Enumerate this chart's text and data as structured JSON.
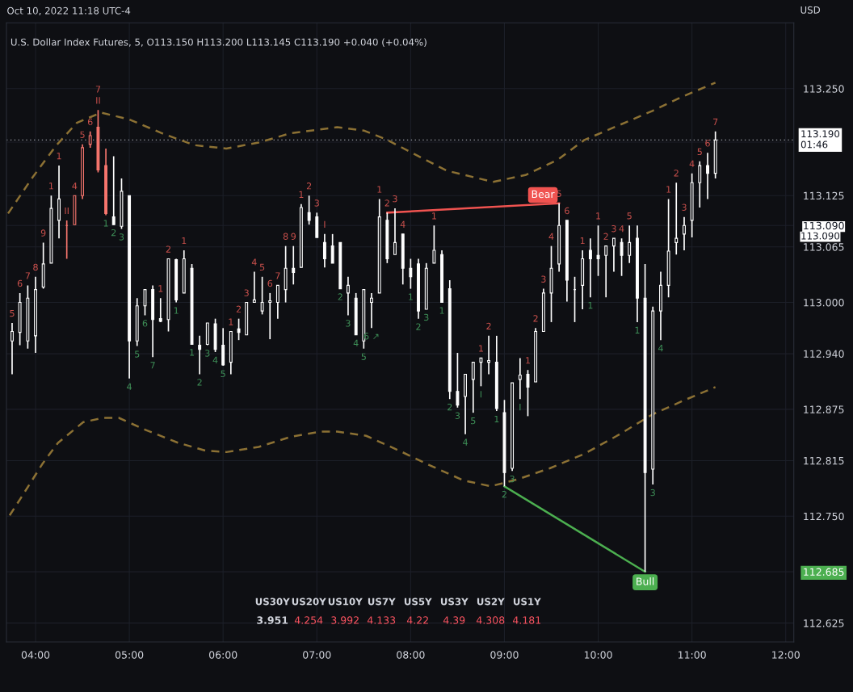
{
  "chart_data": [
    {
      "type": "candlestick",
      "title": "U.S. Dollar Index Futures, 5, O113.150 H113.200 L113.145 C113.190 +0.040 (+0.04%)",
      "subtitle": "Oct 10, 2022 11:18 UTC-4",
      "ylabel": "USD",
      "x": [
        3.75,
        3.833,
        3.917,
        4,
        4.083,
        4.167,
        4.25,
        4.333,
        4.417,
        4.5,
        4.583,
        4.667,
        4.75,
        4.833,
        4.917,
        5,
        5.083,
        5.167,
        5.25,
        5.333,
        5.417,
        5.5,
        5.583,
        5.667,
        5.75,
        5.833,
        5.917,
        6,
        6.083,
        6.167,
        6.25,
        6.333,
        6.417,
        6.5,
        6.583,
        6.667,
        6.75,
        6.833,
        6.917,
        7,
        7.083,
        7.167,
        7.25,
        7.333,
        7.417,
        7.5,
        7.583,
        7.667,
        7.75,
        7.833,
        7.917,
        8,
        8.083,
        8.167,
        8.25,
        8.333,
        8.417,
        8.5,
        8.583,
        8.667,
        8.75,
        8.833,
        8.917,
        9,
        9.083,
        9.167,
        9.25,
        9.333,
        9.417,
        9.5,
        9.583,
        9.667,
        9.75,
        9.833,
        9.917,
        10,
        10.083,
        10.167,
        10.25,
        10.333,
        10.417,
        10.5,
        10.583,
        10.667,
        10.75,
        10.833,
        10.917,
        11,
        11.083,
        11.167,
        11.25
      ],
      "ohlc": [
        [
          112.955,
          112.976,
          112.916,
          112.966
        ],
        [
          112.965,
          113.011,
          112.95,
          113.0
        ],
        [
          112.955,
          113.02,
          112.946,
          113.005
        ],
        [
          112.961,
          113.03,
          112.941,
          113.015
        ],
        [
          113.018,
          113.07,
          113.016,
          113.045
        ],
        [
          113.046,
          113.125,
          113.046,
          113.11
        ],
        [
          113.096,
          113.16,
          113.075,
          113.121
        ],
        [
          113.09,
          113.096,
          113.051,
          113.09
        ],
        [
          113.091,
          113.125,
          113.091,
          113.125
        ],
        [
          113.125,
          113.185,
          113.121,
          113.181
        ],
        [
          113.185,
          113.2,
          113.181,
          113.195
        ],
        [
          113.205,
          113.225,
          113.152,
          113.155
        ],
        [
          113.16,
          113.18,
          113.102,
          113.104
        ],
        [
          113.1,
          113.171,
          113.091,
          113.091
        ],
        [
          113.089,
          113.145,
          113.086,
          113.13
        ],
        [
          113.125,
          113.125,
          112.911,
          112.955
        ],
        [
          112.955,
          113.005,
          112.949,
          112.996
        ],
        [
          112.996,
          113.015,
          112.985,
          113.015
        ],
        [
          113.015,
          113.02,
          112.936,
          112.98
        ],
        [
          112.981,
          113.005,
          112.977,
          112.978
        ],
        [
          112.98,
          113.051,
          112.966,
          113.051
        ],
        [
          113.05,
          113.051,
          113.0,
          113.003
        ],
        [
          113.011,
          113.061,
          113.011,
          113.051
        ],
        [
          113.04,
          113.045,
          112.951,
          112.951
        ],
        [
          112.95,
          112.961,
          112.916,
          112.945
        ],
        [
          112.951,
          112.976,
          112.95,
          112.976
        ],
        [
          112.975,
          112.981,
          112.942,
          112.945
        ],
        [
          112.95,
          112.97,
          112.926,
          112.927
        ],
        [
          112.93,
          112.966,
          112.916,
          112.966
        ],
        [
          112.969,
          112.981,
          112.956,
          112.965
        ],
        [
          112.962,
          113.0,
          112.962,
          113.0
        ],
        [
          113.0,
          113.036,
          113.0,
          113.003
        ],
        [
          112.99,
          113.03,
          112.986,
          113.0
        ],
        [
          113.0,
          113.011,
          112.957,
          113.002
        ],
        [
          113.0,
          113.02,
          112.981,
          113.02
        ],
        [
          113.015,
          113.066,
          113.0,
          113.04
        ],
        [
          113.04,
          113.066,
          113.021,
          113.035
        ],
        [
          113.041,
          113.115,
          113.041,
          113.111
        ],
        [
          113.105,
          113.125,
          113.091,
          113.096
        ],
        [
          113.1,
          113.105,
          113.076,
          113.076
        ],
        [
          113.07,
          113.08,
          113.041,
          113.051
        ],
        [
          113.066,
          113.08,
          113.046,
          113.046
        ],
        [
          113.07,
          113.07,
          113.016,
          113.016
        ],
        [
          113.011,
          113.03,
          112.985,
          113.02
        ],
        [
          113.005,
          113.011,
          112.962,
          112.962
        ],
        [
          112.955,
          113.015,
          112.946,
          113.015
        ],
        [
          113.0,
          113.011,
          112.97,
          113.005
        ],
        [
          113.011,
          113.121,
          113.011,
          113.1
        ],
        [
          113.096,
          113.105,
          113.046,
          113.051
        ],
        [
          113.056,
          113.11,
          113.056,
          113.07
        ],
        [
          113.08,
          113.08,
          113.021,
          113.04
        ],
        [
          113.04,
          113.051,
          113.016,
          113.03
        ],
        [
          113.045,
          113.051,
          112.981,
          112.99
        ],
        [
          112.992,
          113.046,
          112.992,
          113.04
        ],
        [
          113.046,
          113.09,
          113.046,
          113.061
        ],
        [
          113.056,
          113.061,
          113.0,
          113.0
        ],
        [
          113.016,
          113.026,
          112.887,
          112.896
        ],
        [
          112.896,
          112.941,
          112.877,
          112.88
        ],
        [
          112.89,
          112.916,
          112.846,
          112.916
        ],
        [
          112.91,
          112.93,
          112.871,
          112.93
        ],
        [
          112.93,
          112.935,
          112.902,
          112.935
        ],
        [
          112.93,
          112.961,
          112.916,
          112.932
        ],
        [
          112.93,
          112.961,
          112.873,
          112.876
        ],
        [
          112.871,
          112.886,
          112.785,
          112.801
        ],
        [
          112.806,
          112.906,
          112.803,
          112.906
        ],
        [
          112.91,
          112.935,
          112.887,
          112.915
        ],
        [
          112.916,
          112.921,
          112.867,
          112.901
        ],
        [
          112.907,
          112.97,
          112.907,
          112.966
        ],
        [
          112.966,
          113.016,
          112.966,
          113.011
        ],
        [
          113.011,
          113.066,
          112.977,
          113.04
        ],
        [
          113.045,
          113.116,
          113.036,
          113.09
        ],
        [
          113.096,
          113.096,
          113.001,
          113.026
        ],
        [
          113.015,
          113.03,
          112.977,
          113.015
        ],
        [
          113.02,
          113.061,
          112.992,
          113.051
        ],
        [
          113.061,
          113.075,
          113.006,
          113.051
        ],
        [
          113.055,
          113.09,
          113.031,
          113.051
        ],
        [
          113.055,
          113.066,
          113.006,
          113.066
        ],
        [
          113.066,
          113.075,
          113.036,
          113.075
        ],
        [
          113.07,
          113.075,
          113.031,
          113.055
        ],
        [
          113.055,
          113.09,
          113.046,
          113.07
        ],
        [
          113.075,
          113.09,
          112.977,
          113.005
        ],
        [
          113.005,
          113.045,
          112.685,
          112.801
        ],
        [
          112.805,
          112.995,
          112.787,
          112.99
        ],
        [
          112.99,
          113.036,
          112.956,
          113.02
        ],
        [
          113.02,
          113.121,
          113.006,
          113.06
        ],
        [
          113.07,
          113.14,
          113.056,
          113.075
        ],
        [
          113.08,
          113.1,
          113.061,
          113.09
        ],
        [
          113.096,
          113.151,
          113.076,
          113.14
        ],
        [
          113.14,
          113.165,
          113.111,
          113.16
        ],
        [
          113.16,
          113.175,
          113.121,
          113.151
        ],
        [
          113.151,
          113.2,
          113.145,
          113.19
        ]
      ],
      "colors": [
        "#ffffff",
        "#ffffff",
        "#ffffff",
        "#ffffff",
        "#ffffff",
        "#ffffff",
        "#ffffff",
        "#f7766e",
        "#f7766e",
        "#f7766e",
        "#f7766e",
        "#f7766e",
        "#f7766e",
        "#ffffff",
        "#ffffff",
        "#ffffff",
        "#ffffff",
        "#ffffff",
        "#ffffff",
        "#ffffff",
        "#ffffff",
        "#ffffff",
        "#ffffff",
        "#ffffff",
        "#ffffff",
        "#ffffff",
        "#ffffff",
        "#ffffff",
        "#ffffff",
        "#ffffff",
        "#ffffff",
        "#ffffff",
        "#ffffff",
        "#ffffff",
        "#ffffff",
        "#ffffff",
        "#ffffff",
        "#ffffff",
        "#ffffff",
        "#ffffff",
        "#ffffff",
        "#ffffff",
        "#ffffff",
        "#ffffff",
        "#ffffff",
        "#ffffff",
        "#ffffff",
        "#ffffff",
        "#ffffff",
        "#ffffff",
        "#ffffff",
        "#ffffff",
        "#ffffff",
        "#ffffff",
        "#ffffff",
        "#ffffff",
        "#ffffff",
        "#ffffff",
        "#ffffff",
        "#ffffff",
        "#ffffff",
        "#ffffff",
        "#ffffff",
        "#ffffff",
        "#ffffff",
        "#ffffff",
        "#ffffff",
        "#ffffff",
        "#ffffff",
        "#ffffff",
        "#ffffff",
        "#ffffff",
        "#ffffff",
        "#ffffff",
        "#ffffff",
        "#ffffff",
        "#ffffff",
        "#ffffff",
        "#ffffff",
        "#ffffff",
        "#ffffff",
        "#ffffff",
        "#ffffff",
        "#ffffff",
        "#ffffff",
        "#ffffff",
        "#ffffff",
        "#ffffff",
        "#ffffff",
        "#ffffff",
        "#ffffff"
      ],
      "series": [
        {
          "type": "line",
          "color": "#8c7134",
          "line_style": "dashed",
          "x": [
            3.707,
            3.966,
            4.224,
            4.44,
            4.698,
            5.0,
            5.345,
            5.69,
            6.034,
            6.379,
            6.724,
            7.216,
            7.5,
            7.733,
            8.103,
            8.388,
            8.879,
            9.224,
            9.569,
            9.853,
            10.216,
            10.578,
            10.905,
            11.25
          ],
          "values": [
            113.104,
            113.146,
            113.184,
            113.21,
            113.222,
            113.214,
            113.198,
            113.184,
            113.18,
            113.187,
            113.198,
            113.205,
            113.201,
            113.191,
            113.17,
            113.154,
            113.141,
            113.149,
            113.167,
            113.19,
            113.207,
            113.224,
            113.241,
            113.257
          ]
        },
        {
          "type": "line",
          "color": "#8c7134",
          "line_style": "dashed",
          "x": [
            3.724,
            3.836,
            4.078,
            4.241,
            4.509,
            4.716,
            4.888,
            5.172,
            5.517,
            5.802,
            6.034,
            6.379,
            6.724,
            7.043,
            7.216,
            7.526,
            7.871,
            8.216,
            8.56,
            8.853,
            9.138,
            9.483,
            9.853,
            10.216,
            10.578,
            10.905,
            11.25
          ],
          "values": [
            112.751,
            112.77,
            112.812,
            112.836,
            112.86,
            112.865,
            112.865,
            112.851,
            112.836,
            112.827,
            112.825,
            112.831,
            112.843,
            112.849,
            112.849,
            112.844,
            112.827,
            112.809,
            112.792,
            112.785,
            112.793,
            112.806,
            112.823,
            112.845,
            112.869,
            112.885,
            112.901
          ]
        },
        {
          "type": "line",
          "name": "Bear",
          "color": "#f05350",
          "line_style": "solid",
          "x": [
            7.75,
            9.583
          ],
          "values": [
            113.105,
            113.116
          ]
        },
        {
          "type": "line",
          "name": "Bull",
          "color": "#4caf50",
          "line_style": "solid",
          "x": [
            9.0,
            10.5
          ],
          "values": [
            112.785,
            112.685
          ]
        }
      ],
      "ylim": [
        112.603,
        113.327
      ],
      "yticks": [
        {
          "value": 113.25,
          "label": "113.250"
        },
        {
          "value": 113.1875,
          "label": null
        },
        {
          "value": 113.125,
          "label": "113.125"
        },
        {
          "value": 113.065,
          "label": "113.065"
        },
        {
          "value": 113.0,
          "label": "113.000"
        },
        {
          "value": 113.09,
          "label": "113.090"
        },
        {
          "value": 112.94,
          "label": "112.940"
        },
        {
          "value": 112.875,
          "label": "112.875"
        },
        {
          "value": 112.815,
          "label": "112.815"
        },
        {
          "value": 112.75,
          "label": "112.750"
        },
        {
          "value": 112.685,
          "label": "112.685"
        },
        {
          "value": 112.625,
          "label": "112.625"
        }
      ],
      "xlim": [
        3.69,
        12.086
      ],
      "xticks": [
        {
          "value": 4,
          "label": "04:00"
        },
        {
          "value": 5,
          "label": "05:00"
        },
        {
          "value": 6,
          "label": "06:00"
        },
        {
          "value": 7,
          "label": "07:00"
        },
        {
          "value": 8,
          "label": "08:00"
        },
        {
          "value": 9,
          "label": "09:00"
        },
        {
          "value": 10,
          "label": "10:00"
        },
        {
          "value": 11,
          "label": "11:00"
        },
        {
          "value": 12,
          "label": "12:00"
        }
      ],
      "grid": true,
      "ref_lines": [
        {
          "axis": "y",
          "value": 113.19,
          "label": "113.190\n01:46",
          "line_style": "dotted",
          "color": "#9598a1"
        }
      ],
      "annotations": [
        "113.090",
        {
          "text": "5",
          "x": 3.75,
          "y": 112.976
        },
        {
          "text": "6",
          "x": 3.833,
          "y": 113.011
        },
        {
          "text": "7",
          "x": 3.917,
          "y": 113.02
        },
        {
          "text": "8",
          "x": 4,
          "y": 113.03
        },
        {
          "text": "9",
          "x": 4.083,
          "y": 113.07
        },
        {
          "text": "1",
          "x": 4.167,
          "y": 113.125
        },
        {
          "text": "1",
          "x": 4.25,
          "y": 113.16
        },
        {
          "text": "II",
          "x": 4.333,
          "y": 113.096
        },
        {
          "text": "4",
          "x": 4.417,
          "y": 113.125
        },
        {
          "text": "5",
          "x": 4.5,
          "y": 113.185
        },
        {
          "text": "6",
          "x": 4.583,
          "y": 113.2
        },
        {
          "text": "II",
          "x": 4.667,
          "y": 113.225
        },
        {
          "text": "7",
          "x": 4.667,
          "y": 113.225
        },
        {
          "text": "1",
          "x": 4.75,
          "y": 113.102
        },
        {
          "text": "2",
          "x": 4.833,
          "y": 113.091
        },
        {
          "text": "3",
          "x": 4.917,
          "y": 113.086
        },
        {
          "text": "4",
          "x": 5,
          "y": 112.911
        },
        {
          "text": "5",
          "x": 5.083,
          "y": 112.949
        },
        {
          "text": "6",
          "x": 5.167,
          "y": 112.985
        },
        {
          "text": "7",
          "x": 5.25,
          "y": 112.936
        },
        {
          "text": "1",
          "x": 5.333,
          "y": 113.005
        },
        {
          "text": "2",
          "x": 5.417,
          "y": 113.051
        },
        {
          "text": "1",
          "x": 5.5,
          "y": 113.0
        },
        {
          "text": "1",
          "x": 5.583,
          "y": 113.061
        },
        {
          "text": "1",
          "x": 5.667,
          "y": 112.951
        },
        {
          "text": "2",
          "x": 5.75,
          "y": 112.916
        },
        {
          "text": "3",
          "x": 5.833,
          "y": 112.95
        },
        {
          "text": "4",
          "x": 5.917,
          "y": 112.942
        },
        {
          "text": "5",
          "x": 6,
          "y": 112.926
        },
        {
          "text": "1",
          "x": 6.083,
          "y": 112.966
        },
        {
          "text": "2",
          "x": 6.167,
          "y": 112.981
        },
        {
          "text": "3",
          "x": 6.25,
          "y": 113.0
        },
        {
          "text": "4",
          "x": 6.333,
          "y": 113.036
        },
        {
          "text": "5",
          "x": 6.417,
          "y": 113.03
        },
        {
          "text": "6",
          "x": 6.5,
          "y": 113.011
        },
        {
          "text": "7",
          "x": 6.583,
          "y": 113.02
        },
        {
          "text": "8",
          "x": 6.667,
          "y": 113.066
        },
        {
          "text": "9",
          "x": 6.75,
          "y": 113.066
        },
        {
          "text": "1",
          "x": 6.833,
          "y": 113.115
        },
        {
          "text": "2",
          "x": 6.917,
          "y": 113.125
        },
        {
          "text": "3",
          "x": 7,
          "y": 113.105
        },
        {
          "text": "I",
          "x": 7.083,
          "y": 113.08
        },
        {
          "text": "2",
          "x": 7.25,
          "y": 113.016
        },
        {
          "text": "3",
          "x": 7.333,
          "y": 112.985
        },
        {
          "text": "4",
          "x": 7.417,
          "y": 112.962
        },
        {
          "text": "5",
          "x": 7.5,
          "y": 112.946
        },
        {
          "text": "6 ↗",
          "x": 7.583,
          "y": 112.97
        },
        {
          "text": "1",
          "x": 7.667,
          "y": 113.121
        },
        {
          "text": "2",
          "x": 7.75,
          "y": 113.105
        },
        {
          "text": "3",
          "x": 7.833,
          "y": 113.11
        },
        {
          "text": "4",
          "x": 7.917,
          "y": 113.08
        },
        {
          "text": "1",
          "x": 8,
          "y": 113.016
        },
        {
          "text": "2",
          "x": 8.083,
          "y": 112.981
        },
        {
          "text": "3",
          "x": 8.167,
          "y": 112.992
        },
        {
          "text": "1",
          "x": 8.25,
          "y": 113.09
        },
        {
          "text": "1",
          "x": 8.333,
          "y": 113.0
        },
        {
          "text": "2",
          "x": 8.417,
          "y": 112.887
        },
        {
          "text": "3",
          "x": 8.5,
          "y": 112.877
        },
        {
          "text": "4",
          "x": 8.583,
          "y": 112.846
        },
        {
          "text": "5",
          "x": 8.667,
          "y": 112.871
        },
        {
          "text": "I",
          "x": 8.75,
          "y": 112.902
        },
        {
          "text": "1",
          "x": 8.75,
          "y": 112.935
        },
        {
          "text": "2",
          "x": 8.833,
          "y": 112.961
        },
        {
          "text": "1",
          "x": 8.917,
          "y": 112.873
        },
        {
          "text": "2",
          "x": 9,
          "y": 112.785
        },
        {
          "text": "3",
          "x": 9.083,
          "y": 112.803
        },
        {
          "text": "I",
          "x": 9.167,
          "y": 112.887
        },
        {
          "text": "1",
          "x": 9.25,
          "y": 112.921
        },
        {
          "text": "2",
          "x": 9.333,
          "y": 112.97
        },
        {
          "text": "3",
          "x": 9.417,
          "y": 113.016
        },
        {
          "text": "4",
          "x": 9.5,
          "y": 113.066
        },
        {
          "text": "5",
          "x": 9.583,
          "y": 113.116
        },
        {
          "text": "6",
          "x": 9.667,
          "y": 113.096
        },
        {
          "text": "1",
          "x": 9.833,
          "y": 113.061
        },
        {
          "text": "1",
          "x": 9.917,
          "y": 113.006
        },
        {
          "text": "1",
          "x": 10,
          "y": 113.09
        },
        {
          "text": "2",
          "x": 10.083,
          "y": 113.066
        },
        {
          "text": "3",
          "x": 10.167,
          "y": 113.075
        },
        {
          "text": "4",
          "x": 10.25,
          "y": 113.075
        },
        {
          "text": "5",
          "x": 10.333,
          "y": 113.09
        },
        {
          "text": "1",
          "x": 10.417,
          "y": 112.977
        },
        {
          "text": "3",
          "x": 10.583,
          "y": 112.787
        },
        {
          "text": "4",
          "x": 10.667,
          "y": 112.956
        },
        {
          "text": "1",
          "x": 10.75,
          "y": 113.121
        },
        {
          "text": "2",
          "x": 10.833,
          "y": 113.14
        },
        {
          "text": "3",
          "x": 10.917,
          "y": 113.1
        },
        {
          "text": "4",
          "x": 11,
          "y": 113.151
        },
        {
          "text": "5",
          "x": 11.083,
          "y": 113.165
        },
        {
          "text": "6",
          "x": 11.167,
          "y": 113.175
        },
        {
          "text": "7",
          "x": 11.25,
          "y": 113.2
        }
      ]
    },
    {
      "type": "other",
      "categories": [
        "US30Y",
        "US20Y",
        "US10Y",
        "US7Y",
        "US5Y",
        "US3Y",
        "US2Y",
        "US1Y"
      ],
      "values": [
        3.951,
        4.254,
        3.992,
        4.133,
        4.22,
        4.39,
        4.308,
        4.181
      ],
      "colors": [
        "#d1d4dc",
        "#f7525f",
        "#f7525f",
        "#f7525f",
        "#f7525f",
        "#f7525f",
        "#f7525f",
        "#f7525f"
      ],
      "data_labels": true
    }
  ]
}
